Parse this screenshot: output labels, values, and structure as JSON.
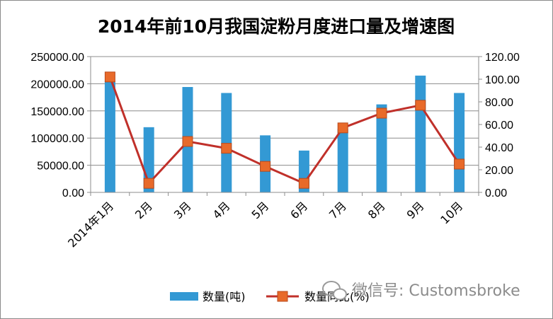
{
  "chart_data": {
    "type": "bar",
    "title": "2014年前10月我国淀粉月度进口量及增速图",
    "categories": [
      "2014年1月",
      "2月",
      "3月",
      "4月",
      "5月",
      "6月",
      "7月",
      "8月",
      "9月",
      "10月"
    ],
    "series": [
      {
        "name": "数量(吨)",
        "type": "bar",
        "axis": "left",
        "color": "#3399d4",
        "values": [
          205000,
          120000,
          194000,
          183000,
          105000,
          77000,
          117000,
          162000,
          215000,
          183000
        ]
      },
      {
        "name": "数量同比(%)",
        "type": "line",
        "axis": "right",
        "color": "#c0302a",
        "marker_color": "#e86a2a",
        "values": [
          102,
          8,
          45,
          39,
          23,
          8,
          57,
          70,
          77,
          25
        ]
      }
    ],
    "y_left": {
      "ylim": [
        0,
        250000
      ],
      "ticks": [
        "0.00",
        "50000.00",
        "100000.00",
        "150000.00",
        "200000.00",
        "250000.00"
      ]
    },
    "y_right": {
      "ylim": [
        0,
        120
      ],
      "ticks": [
        "0.00",
        "20.00",
        "40.00",
        "60.00",
        "80.00",
        "100.00",
        "120.00"
      ]
    },
    "grid": true,
    "legend_position": "bottom"
  },
  "watermark": {
    "text": "微信号: Customsbroke",
    "icon": "wechat-icon"
  }
}
